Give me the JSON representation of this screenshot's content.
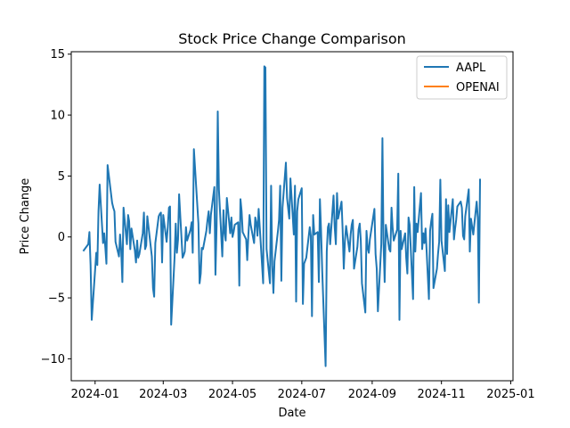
{
  "chart_data": {
    "type": "line",
    "title": "Stock Price Change Comparison",
    "xlabel": "Date",
    "ylabel": "Price Change",
    "x_ticks": [
      "2024-01",
      "2024-03",
      "2024-05",
      "2024-07",
      "2024-09",
      "2024-11",
      "2025-01"
    ],
    "y_ticks": [
      "−10",
      "−5",
      "0",
      "5",
      "10",
      "15"
    ],
    "xlim": [
      "2023-12-11",
      "2025-01-03"
    ],
    "ylim": [
      -11.8,
      15.2
    ],
    "grid": false,
    "legend_position": "top-right",
    "series": [
      {
        "name": "AAPL",
        "color": "#1f77b4",
        "points": [
          [
            "2023-12-22",
            -1.1
          ],
          [
            "2023-12-26",
            -0.6
          ],
          [
            "2023-12-27",
            0.4
          ],
          [
            "2023-12-28",
            -2.3
          ],
          [
            "2023-12-29",
            -6.8
          ],
          [
            "2024-01-02",
            -1.3
          ],
          [
            "2024-01-03",
            -2.3
          ],
          [
            "2024-01-04",
            2.1
          ],
          [
            "2024-01-05",
            4.3
          ],
          [
            "2024-01-08",
            -0.5
          ],
          [
            "2024-01-09",
            0.3
          ],
          [
            "2024-01-10",
            -0.9
          ],
          [
            "2024-01-11",
            -2.2
          ],
          [
            "2024-01-12",
            5.9
          ],
          [
            "2024-01-16",
            2.8
          ],
          [
            "2024-01-17",
            2.4
          ],
          [
            "2024-01-18",
            2.1
          ],
          [
            "2024-01-19",
            -0.4
          ],
          [
            "2024-01-22",
            -1.6
          ],
          [
            "2024-01-23",
            0.2
          ],
          [
            "2024-01-24",
            -1.1
          ],
          [
            "2024-01-25",
            -3.7
          ],
          [
            "2024-01-26",
            2.4
          ],
          [
            "2024-01-29",
            -0.6
          ],
          [
            "2024-01-30",
            1.8
          ],
          [
            "2024-01-31",
            1.3
          ],
          [
            "2024-02-01",
            -1.0
          ],
          [
            "2024-02-02",
            0.7
          ],
          [
            "2024-02-05",
            -1.1
          ],
          [
            "2024-02-06",
            -2.1
          ],
          [
            "2024-02-07",
            -0.3
          ],
          [
            "2024-02-08",
            -1.7
          ],
          [
            "2024-02-09",
            -1.4
          ],
          [
            "2024-02-12",
            0.3
          ],
          [
            "2024-02-13",
            2.0
          ],
          [
            "2024-02-14",
            -1.0
          ],
          [
            "2024-02-15",
            -0.7
          ],
          [
            "2024-02-16",
            1.7
          ],
          [
            "2024-02-20",
            -1.6
          ],
          [
            "2024-02-21",
            -4.2
          ],
          [
            "2024-02-22",
            -4.9
          ],
          [
            "2024-02-23",
            -0.5
          ],
          [
            "2024-02-26",
            1.7
          ],
          [
            "2024-02-27",
            1.9
          ],
          [
            "2024-02-28",
            2.0
          ],
          [
            "2024-02-29",
            -2.1
          ],
          [
            "2024-03-01",
            1.8
          ],
          [
            "2024-03-04",
            -0.4
          ],
          [
            "2024-03-05",
            0.8
          ],
          [
            "2024-03-06",
            2.4
          ],
          [
            "2024-03-07",
            2.5
          ],
          [
            "2024-03-08",
            -7.2
          ],
          [
            "2024-03-11",
            -1.7
          ],
          [
            "2024-03-12",
            1.1
          ],
          [
            "2024-03-13",
            -1.3
          ],
          [
            "2024-03-14",
            -0.2
          ],
          [
            "2024-03-15",
            3.5
          ],
          [
            "2024-03-18",
            -1.7
          ],
          [
            "2024-03-19",
            -1.5
          ],
          [
            "2024-03-20",
            -1.2
          ],
          [
            "2024-03-21",
            0.8
          ],
          [
            "2024-03-22",
            -0.3
          ],
          [
            "2024-03-25",
            0.6
          ],
          [
            "2024-03-26",
            1.2
          ],
          [
            "2024-03-27",
            -1.3
          ],
          [
            "2024-03-28",
            7.2
          ],
          [
            "2024-04-01",
            1.1
          ],
          [
            "2024-04-02",
            -3.8
          ],
          [
            "2024-04-03",
            -3.0
          ],
          [
            "2024-04-04",
            -0.9
          ],
          [
            "2024-04-05",
            -1.0
          ],
          [
            "2024-04-08",
            0.5
          ],
          [
            "2024-04-09",
            1.4
          ],
          [
            "2024-04-10",
            2.1
          ],
          [
            "2024-04-11",
            0.3
          ],
          [
            "2024-04-12",
            1.8
          ],
          [
            "2024-04-15",
            4.1
          ],
          [
            "2024-04-16",
            -3.1
          ],
          [
            "2024-04-17",
            0.9
          ],
          [
            "2024-04-18",
            10.3
          ],
          [
            "2024-04-19",
            3.9
          ],
          [
            "2024-04-22",
            -1.6
          ],
          [
            "2024-04-23",
            2.2
          ],
          [
            "2024-04-24",
            0.4
          ],
          [
            "2024-04-25",
            -0.3
          ],
          [
            "2024-04-26",
            3.2
          ],
          [
            "2024-04-29",
            0.3
          ],
          [
            "2024-04-30",
            1.6
          ],
          [
            "2024-05-01",
            0.0
          ],
          [
            "2024-05-02",
            0.4
          ],
          [
            "2024-05-03",
            1.0
          ],
          [
            "2024-05-06",
            1.2
          ],
          [
            "2024-05-07",
            -4.0
          ],
          [
            "2024-05-08",
            3.1
          ],
          [
            "2024-05-09",
            2.1
          ],
          [
            "2024-05-10",
            0.4
          ],
          [
            "2024-05-13",
            -0.2
          ],
          [
            "2024-05-14",
            -1.9
          ],
          [
            "2024-05-15",
            0.2
          ],
          [
            "2024-05-16",
            1.8
          ],
          [
            "2024-05-17",
            1.0
          ],
          [
            "2024-05-20",
            -0.5
          ],
          [
            "2024-05-21",
            1.6
          ],
          [
            "2024-05-22",
            1.2
          ],
          [
            "2024-05-23",
            0.1
          ],
          [
            "2024-05-24",
            2.3
          ],
          [
            "2024-05-28",
            -3.8
          ],
          [
            "2024-05-29",
            14.0
          ],
          [
            "2024-05-30",
            13.9
          ],
          [
            "2024-05-31",
            -1.0
          ],
          [
            "2024-06-03",
            -3.8
          ],
          [
            "2024-06-04",
            4.2
          ],
          [
            "2024-06-05",
            -2.3
          ],
          [
            "2024-06-06",
            -4.6
          ],
          [
            "2024-06-07",
            -2.0
          ],
          [
            "2024-06-10",
            0.5
          ],
          [
            "2024-06-11",
            1.4
          ],
          [
            "2024-06-12",
            4.2
          ],
          [
            "2024-06-13",
            -3.6
          ],
          [
            "2024-06-14",
            2.4
          ],
          [
            "2024-06-17",
            6.1
          ],
          [
            "2024-06-18",
            3.2
          ],
          [
            "2024-06-20",
            1.5
          ],
          [
            "2024-06-21",
            4.8
          ],
          [
            "2024-06-24",
            0.2
          ],
          [
            "2024-06-25",
            4.2
          ],
          [
            "2024-06-26",
            -5.3
          ],
          [
            "2024-06-27",
            2.1
          ],
          [
            "2024-06-28",
            3.1
          ],
          [
            "2024-07-01",
            4.0
          ],
          [
            "2024-07-02",
            -5.5
          ],
          [
            "2024-07-03",
            -2.2
          ],
          [
            "2024-07-05",
            -1.7
          ],
          [
            "2024-07-08",
            0.8
          ],
          [
            "2024-07-09",
            0.1
          ],
          [
            "2024-07-10",
            -6.5
          ],
          [
            "2024-07-11",
            1.8
          ],
          [
            "2024-07-12",
            0.2
          ],
          [
            "2024-07-15",
            0.4
          ],
          [
            "2024-07-16",
            -3.7
          ],
          [
            "2024-07-17",
            3.1
          ],
          [
            "2024-07-18",
            0.5
          ],
          [
            "2024-07-19",
            -2.8
          ],
          [
            "2024-07-22",
            -10.6
          ],
          [
            "2024-07-23",
            -1.2
          ],
          [
            "2024-07-24",
            0.8
          ],
          [
            "2024-07-25",
            1.1
          ],
          [
            "2024-07-26",
            -0.6
          ],
          [
            "2024-07-29",
            3.4
          ],
          [
            "2024-07-30",
            0.8
          ],
          [
            "2024-07-31",
            -0.6
          ],
          [
            "2024-08-01",
            3.6
          ],
          [
            "2024-08-02",
            1.5
          ],
          [
            "2024-08-05",
            2.9
          ],
          [
            "2024-08-06",
            0.6
          ],
          [
            "2024-08-07",
            -2.6
          ],
          [
            "2024-08-08",
            -0.3
          ],
          [
            "2024-08-09",
            0.9
          ],
          [
            "2024-08-12",
            -1.2
          ],
          [
            "2024-08-13",
            0.2
          ],
          [
            "2024-08-14",
            1.0
          ],
          [
            "2024-08-15",
            1.4
          ],
          [
            "2024-08-16",
            -2.6
          ],
          [
            "2024-08-19",
            -0.8
          ],
          [
            "2024-08-20",
            0.6
          ],
          [
            "2024-08-21",
            1.1
          ],
          [
            "2024-08-22",
            -0.3
          ],
          [
            "2024-08-23",
            -3.8
          ],
          [
            "2024-08-26",
            -6.2
          ],
          [
            "2024-08-27",
            0.5
          ],
          [
            "2024-08-28",
            -0.9
          ],
          [
            "2024-08-29",
            -1.3
          ],
          [
            "2024-08-30",
            -0.2
          ],
          [
            "2024-09-03",
            2.3
          ],
          [
            "2024-09-04",
            -1.4
          ],
          [
            "2024-09-05",
            -2.6
          ],
          [
            "2024-09-06",
            -6.1
          ],
          [
            "2024-09-09",
            -0.6
          ],
          [
            "2024-09-10",
            8.1
          ],
          [
            "2024-09-11",
            -0.4
          ],
          [
            "2024-09-12",
            -3.7
          ],
          [
            "2024-09-13",
            1.0
          ],
          [
            "2024-09-16",
            -1.0
          ],
          [
            "2024-09-17",
            -1.2
          ],
          [
            "2024-09-18",
            2.4
          ],
          [
            "2024-09-19",
            0.8
          ],
          [
            "2024-09-20",
            -0.3
          ],
          [
            "2024-09-23",
            0.6
          ],
          [
            "2024-09-24",
            5.2
          ],
          [
            "2024-09-25",
            -6.8
          ],
          [
            "2024-09-26",
            0.5
          ],
          [
            "2024-09-27",
            -1.0
          ],
          [
            "2024-09-30",
            0.3
          ],
          [
            "2024-10-01",
            -1.7
          ],
          [
            "2024-10-02",
            -3.0
          ],
          [
            "2024-10-03",
            1.6
          ],
          [
            "2024-10-04",
            1.0
          ],
          [
            "2024-10-07",
            -5.1
          ],
          [
            "2024-10-08",
            4.1
          ],
          [
            "2024-10-09",
            -1.2
          ],
          [
            "2024-10-10",
            1.1
          ],
          [
            "2024-10-11",
            0.4
          ],
          [
            "2024-10-14",
            3.6
          ],
          [
            "2024-10-15",
            -1.0
          ],
          [
            "2024-10-16",
            0.3
          ],
          [
            "2024-10-17",
            -0.5
          ],
          [
            "2024-10-18",
            0.7
          ],
          [
            "2024-10-21",
            -5.1
          ],
          [
            "2024-10-22",
            0.5
          ],
          [
            "2024-10-23",
            1.3
          ],
          [
            "2024-10-24",
            1.9
          ],
          [
            "2024-10-25",
            -4.2
          ],
          [
            "2024-10-28",
            -2.6
          ],
          [
            "2024-10-29",
            -1.4
          ],
          [
            "2024-10-30",
            -0.4
          ],
          [
            "2024-10-31",
            4.7
          ],
          [
            "2024-11-01",
            -0.3
          ],
          [
            "2024-11-04",
            -2.8
          ],
          [
            "2024-11-05",
            3.1
          ],
          [
            "2024-11-06",
            -1.4
          ],
          [
            "2024-11-07",
            2.6
          ],
          [
            "2024-11-08",
            0.4
          ],
          [
            "2024-11-11",
            3.1
          ],
          [
            "2024-11-12",
            -0.2
          ],
          [
            "2024-11-13",
            0.7
          ],
          [
            "2024-11-14",
            1.4
          ],
          [
            "2024-11-15",
            2.5
          ],
          [
            "2024-11-18",
            2.9
          ],
          [
            "2024-11-19",
            2.4
          ],
          [
            "2024-11-20",
            0.1
          ],
          [
            "2024-11-21",
            -0.2
          ],
          [
            "2024-11-22",
            1.7
          ],
          [
            "2024-11-25",
            3.9
          ],
          [
            "2024-11-26",
            -1.2
          ],
          [
            "2024-11-27",
            1.5
          ],
          [
            "2024-11-29",
            0.2
          ],
          [
            "2024-12-02",
            2.9
          ],
          [
            "2024-12-03",
            1.6
          ],
          [
            "2024-12-04",
            -5.4
          ],
          [
            "2024-12-05",
            4.7
          ]
        ]
      },
      {
        "name": "OPENAI",
        "color": "#ff7f0e",
        "points": []
      }
    ]
  }
}
